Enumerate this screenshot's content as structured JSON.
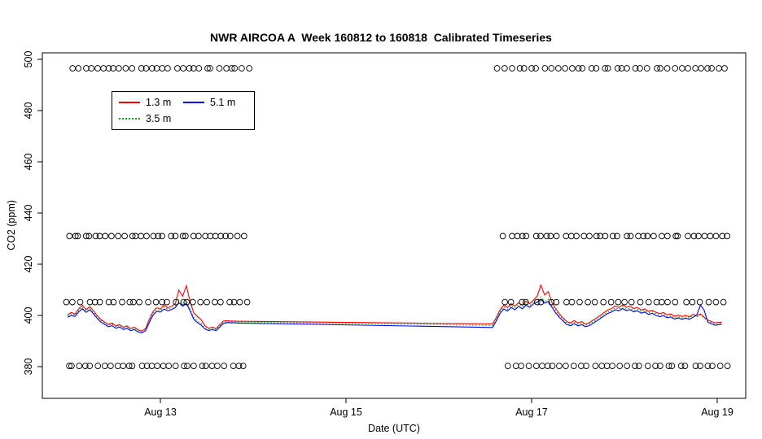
{
  "page": {
    "background": "#FFFFFF"
  },
  "chart_data": {
    "type": "line",
    "title": "NWR AIRCOA A  Week 160812 to 160818  Calibrated Timeseries",
    "xlabel": "Date (UTC)",
    "ylabel": "CO2 (ppm)",
    "grid": false,
    "ylim": [
      367.5,
      502.5
    ],
    "xlim_days_august_2016": [
      11.73,
      19.31
    ],
    "y_ticks": [
      380,
      400,
      420,
      440,
      460,
      480,
      500
    ],
    "x_ticks": [
      {
        "day": 13,
        "label": "Aug 13"
      },
      {
        "day": 15,
        "label": "Aug 15"
      },
      {
        "day": 17,
        "label": "Aug 17"
      },
      {
        "day": 19,
        "label": "Aug 19"
      }
    ],
    "legend": {
      "position": "top-left",
      "order": [
        "1.3 m",
        "5.1 m",
        "3.5 m"
      ]
    },
    "marker": {
      "shape": "open-circle",
      "color": "#000000",
      "radius_px": 3.4
    },
    "x": [
      12.0,
      12.04,
      12.08,
      12.12,
      12.16,
      12.2,
      12.24,
      12.28,
      12.32,
      12.36,
      12.4,
      12.44,
      12.48,
      12.52,
      12.56,
      12.6,
      12.64,
      12.68,
      12.72,
      12.76,
      12.8,
      12.84,
      12.88,
      12.92,
      12.96,
      13.0,
      13.04,
      13.08,
      13.12,
      13.16,
      13.2,
      13.24,
      13.28,
      13.32,
      13.36,
      13.4,
      13.44,
      13.48,
      13.52,
      13.56,
      13.6,
      13.64,
      13.68,
      13.72,
      13.76,
      13.8,
      13.84,
      13.88,
      16.58,
      16.62,
      16.66,
      16.7,
      16.74,
      16.78,
      16.82,
      16.86,
      16.9,
      16.94,
      16.98,
      17.02,
      17.06,
      17.1,
      17.14,
      17.18,
      17.22,
      17.26,
      17.3,
      17.34,
      17.38,
      17.42,
      17.46,
      17.5,
      17.54,
      17.58,
      17.62,
      17.66,
      17.7,
      17.74,
      17.78,
      17.82,
      17.86,
      17.9,
      17.94,
      17.98,
      18.02,
      18.06,
      18.1,
      18.14,
      18.18,
      18.22,
      18.26,
      18.3,
      18.34,
      18.38,
      18.42,
      18.46,
      18.5,
      18.54,
      18.58,
      18.62,
      18.66,
      18.7,
      18.74,
      18.78,
      18.82,
      18.86,
      18.9,
      18.94,
      18.98,
      19.02,
      19.05
    ],
    "series": [
      {
        "name": "1.3 m",
        "color": "#FF0000",
        "dash": "solid",
        "values": [
          400.2,
          401.2,
          400.5,
          402.6,
          404.0,
          402.3,
          403.4,
          401.8,
          399.9,
          398.4,
          397.4,
          396.5,
          397.0,
          395.9,
          396.4,
          395.4,
          395.9,
          394.9,
          395.4,
          394.4,
          393.9,
          394.9,
          398.4,
          401.5,
          403.0,
          402.5,
          404.0,
          403.0,
          403.6,
          404.6,
          409.8,
          407.5,
          411.6,
          405.5,
          401.0,
          399.6,
          398.3,
          396.0,
          395.0,
          395.4,
          394.9,
          396.4,
          397.8,
          397.9,
          397.8,
          397.8,
          397.7,
          397.7,
          396.7,
          399.2,
          402.2,
          404.0,
          403.1,
          404.6,
          403.6,
          405.0,
          404.0,
          405.6,
          404.6,
          406.0,
          407.5,
          411.8,
          408.0,
          409.3,
          405.0,
          402.6,
          400.6,
          399.0,
          397.6,
          397.1,
          398.0,
          397.0,
          397.6,
          396.6,
          397.1,
          398.1,
          399.0,
          400.0,
          401.1,
          402.1,
          402.6,
          403.7,
          403.1,
          404.1,
          403.2,
          403.6,
          402.7,
          403.1,
          402.1,
          402.5,
          401.6,
          402.0,
          401.2,
          400.7,
          401.1,
          400.2,
          400.6,
          399.7,
          400.1,
          399.6,
          400.0,
          399.5,
          400.4,
          399.9,
          400.6,
          399.3,
          398.2,
          397.6,
          397.1,
          397.3,
          397.4
        ]
      },
      {
        "name": "3.5 m",
        "color": "#00B200",
        "dash": "dotted",
        "values": [
          399.8,
          400.6,
          400.1,
          402.0,
          403.3,
          401.8,
          402.8,
          401.2,
          399.4,
          398.0,
          397.1,
          396.2,
          396.6,
          395.6,
          396.1,
          395.1,
          395.6,
          394.7,
          395.1,
          394.2,
          393.7,
          394.6,
          397.8,
          400.8,
          402.3,
          401.9,
          403.2,
          402.4,
          402.9,
          403.8,
          406.2,
          404.6,
          405.8,
          402.6,
          399.2,
          397.8,
          396.8,
          395.2,
          394.6,
          395.0,
          394.6,
          396.0,
          397.4,
          397.6,
          397.5,
          397.5,
          397.4,
          397.4,
          396.1,
          398.5,
          401.5,
          403.2,
          402.4,
          403.8,
          402.9,
          404.2,
          403.3,
          404.8,
          403.9,
          405.2,
          406.0,
          407.2,
          405.6,
          406.3,
          403.9,
          401.8,
          399.9,
          398.4,
          397.0,
          396.6,
          397.4,
          396.5,
          397.0,
          396.1,
          396.6,
          397.5,
          398.4,
          399.4,
          400.4,
          401.4,
          401.9,
          402.9,
          402.4,
          403.3,
          402.5,
          402.9,
          402.0,
          402.4,
          401.5,
          401.9,
          401.0,
          401.4,
          400.6,
          400.1,
          400.5,
          399.6,
          400.0,
          399.1,
          399.5,
          399.0,
          399.4,
          399.0,
          399.9,
          399.4,
          400.2,
          398.9,
          397.8,
          397.2,
          396.7,
          396.9,
          397.0
        ]
      },
      {
        "name": "5.1 m",
        "color": "#0000FF",
        "dash": "solid",
        "values": [
          399.3,
          400.0,
          399.6,
          401.4,
          402.6,
          401.2,
          402.2,
          400.6,
          398.8,
          397.4,
          396.5,
          395.6,
          396.0,
          395.0,
          395.5,
          394.5,
          395.0,
          394.1,
          394.5,
          393.6,
          393.2,
          394.0,
          397.2,
          400.1,
          401.6,
          401.3,
          402.5,
          401.8,
          402.3,
          403.0,
          405.0,
          403.6,
          404.6,
          401.8,
          398.5,
          397.2,
          396.2,
          394.7,
          394.1,
          394.5,
          394.1,
          395.5,
          396.9,
          397.2,
          397.1,
          397.1,
          397.0,
          397.0,
          395.3,
          397.9,
          400.8,
          402.5,
          401.7,
          403.1,
          402.2,
          403.5,
          402.6,
          404.0,
          403.2,
          404.5,
          405.2,
          406.2,
          404.8,
          405.5,
          403.1,
          401.0,
          399.2,
          397.8,
          396.4,
          396.0,
          396.8,
          395.9,
          396.4,
          395.6,
          396.0,
          396.9,
          397.8,
          398.8,
          399.8,
          400.8,
          401.3,
          402.2,
          401.8,
          402.7,
          401.9,
          402.3,
          401.4,
          401.8,
          400.9,
          401.3,
          400.4,
          400.8,
          400.0,
          399.5,
          399.9,
          399.1,
          399.4,
          398.6,
          399.0,
          398.5,
          398.9,
          398.5,
          399.3,
          400.2,
          404.0,
          402.0,
          397.3,
          396.7,
          396.2,
          396.4,
          396.5
        ]
      }
    ],
    "reference_gas_rows": [
      {
        "value": 496.5,
        "clusters": [
          {
            "from": 12.05,
            "to": 13.95,
            "n": 30
          },
          {
            "from": 16.65,
            "to": 19.1,
            "n": 36
          }
        ]
      },
      {
        "value": 431.0,
        "clusters": [
          {
            "from": 12.0,
            "to": 13.9,
            "n": 32
          },
          {
            "from": 16.7,
            "to": 19.12,
            "n": 38
          }
        ]
      },
      {
        "value": 405.2,
        "clusters": [
          {
            "from": 12.0,
            "to": 13.95,
            "n": 28
          },
          {
            "from": 16.72,
            "to": 19.05,
            "n": 30
          }
        ]
      },
      {
        "value": 380.3,
        "clusters": [
          {
            "from": 12.0,
            "to": 13.9,
            "n": 30
          },
          {
            "from": 16.75,
            "to": 19.1,
            "n": 34
          }
        ]
      }
    ]
  }
}
